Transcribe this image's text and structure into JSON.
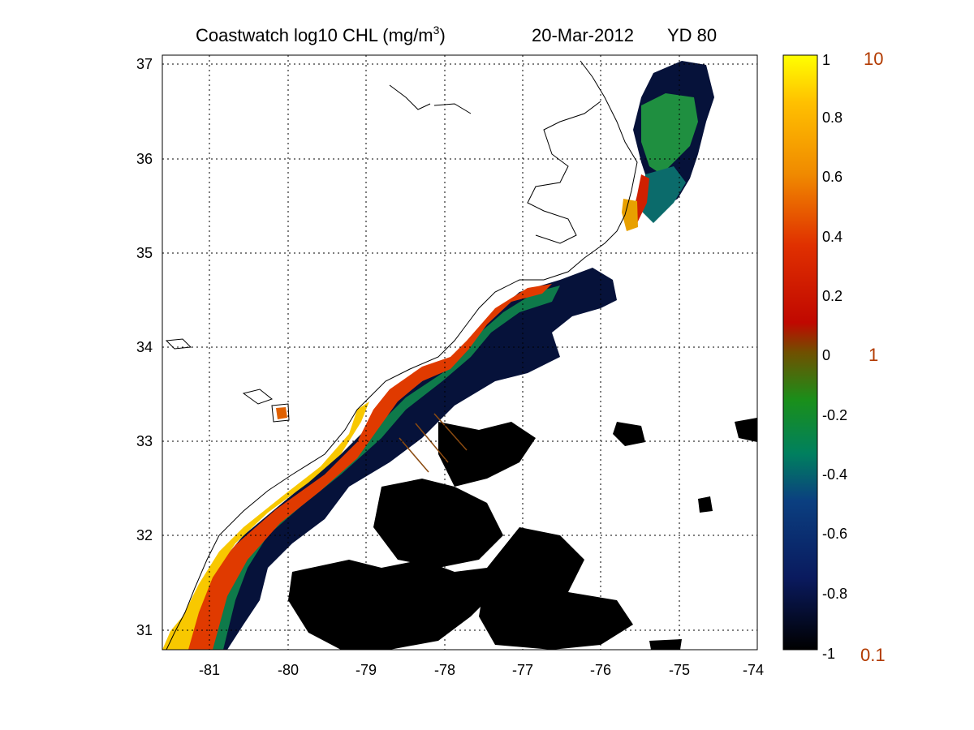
{
  "title": {
    "prefix": "Coastwatch  log10  CHL (mg/m",
    "superscript": "3",
    "suffix": ")",
    "date": "20-Mar-2012",
    "yearday": "YD 80"
  },
  "chart_data": {
    "type": "heatmap",
    "x_ticks": [
      "-81",
      "-80",
      "-79",
      "-78",
      "-77",
      "-76",
      "-75",
      "-74"
    ],
    "y_ticks": [
      "37",
      "36",
      "35",
      "34",
      "33",
      "32",
      "31"
    ],
    "xlim": [
      -81.6,
      -74
    ],
    "ylim": [
      30.8,
      37.2
    ],
    "grid": true,
    "colorbar": {
      "ticks": [
        "1",
        "0.8",
        "0.6",
        "0.4",
        "0.2",
        "0",
        "-0.2",
        "-0.4",
        "-0.6",
        "-0.8",
        "-1"
      ],
      "range": [
        -1,
        1
      ],
      "right_labels": [
        "10",
        "1",
        "0.1"
      ],
      "colors": [
        "#000000",
        "#0a1a5e",
        "#0b4a8c",
        "#009966",
        "#1a8f1a",
        "#b01000",
        "#e03000",
        "#f08a00",
        "#ffc000",
        "#ffff00"
      ]
    },
    "transects": [
      {
        "from": [
          -78.5,
          33.05
        ],
        "to": [
          -78.1,
          32.7
        ]
      },
      {
        "from": [
          -78.2,
          33.2
        ],
        "to": [
          -77.8,
          32.85
        ]
      },
      {
        "from": [
          -78.0,
          33.3
        ],
        "to": [
          -77.6,
          32.95
        ]
      }
    ]
  }
}
